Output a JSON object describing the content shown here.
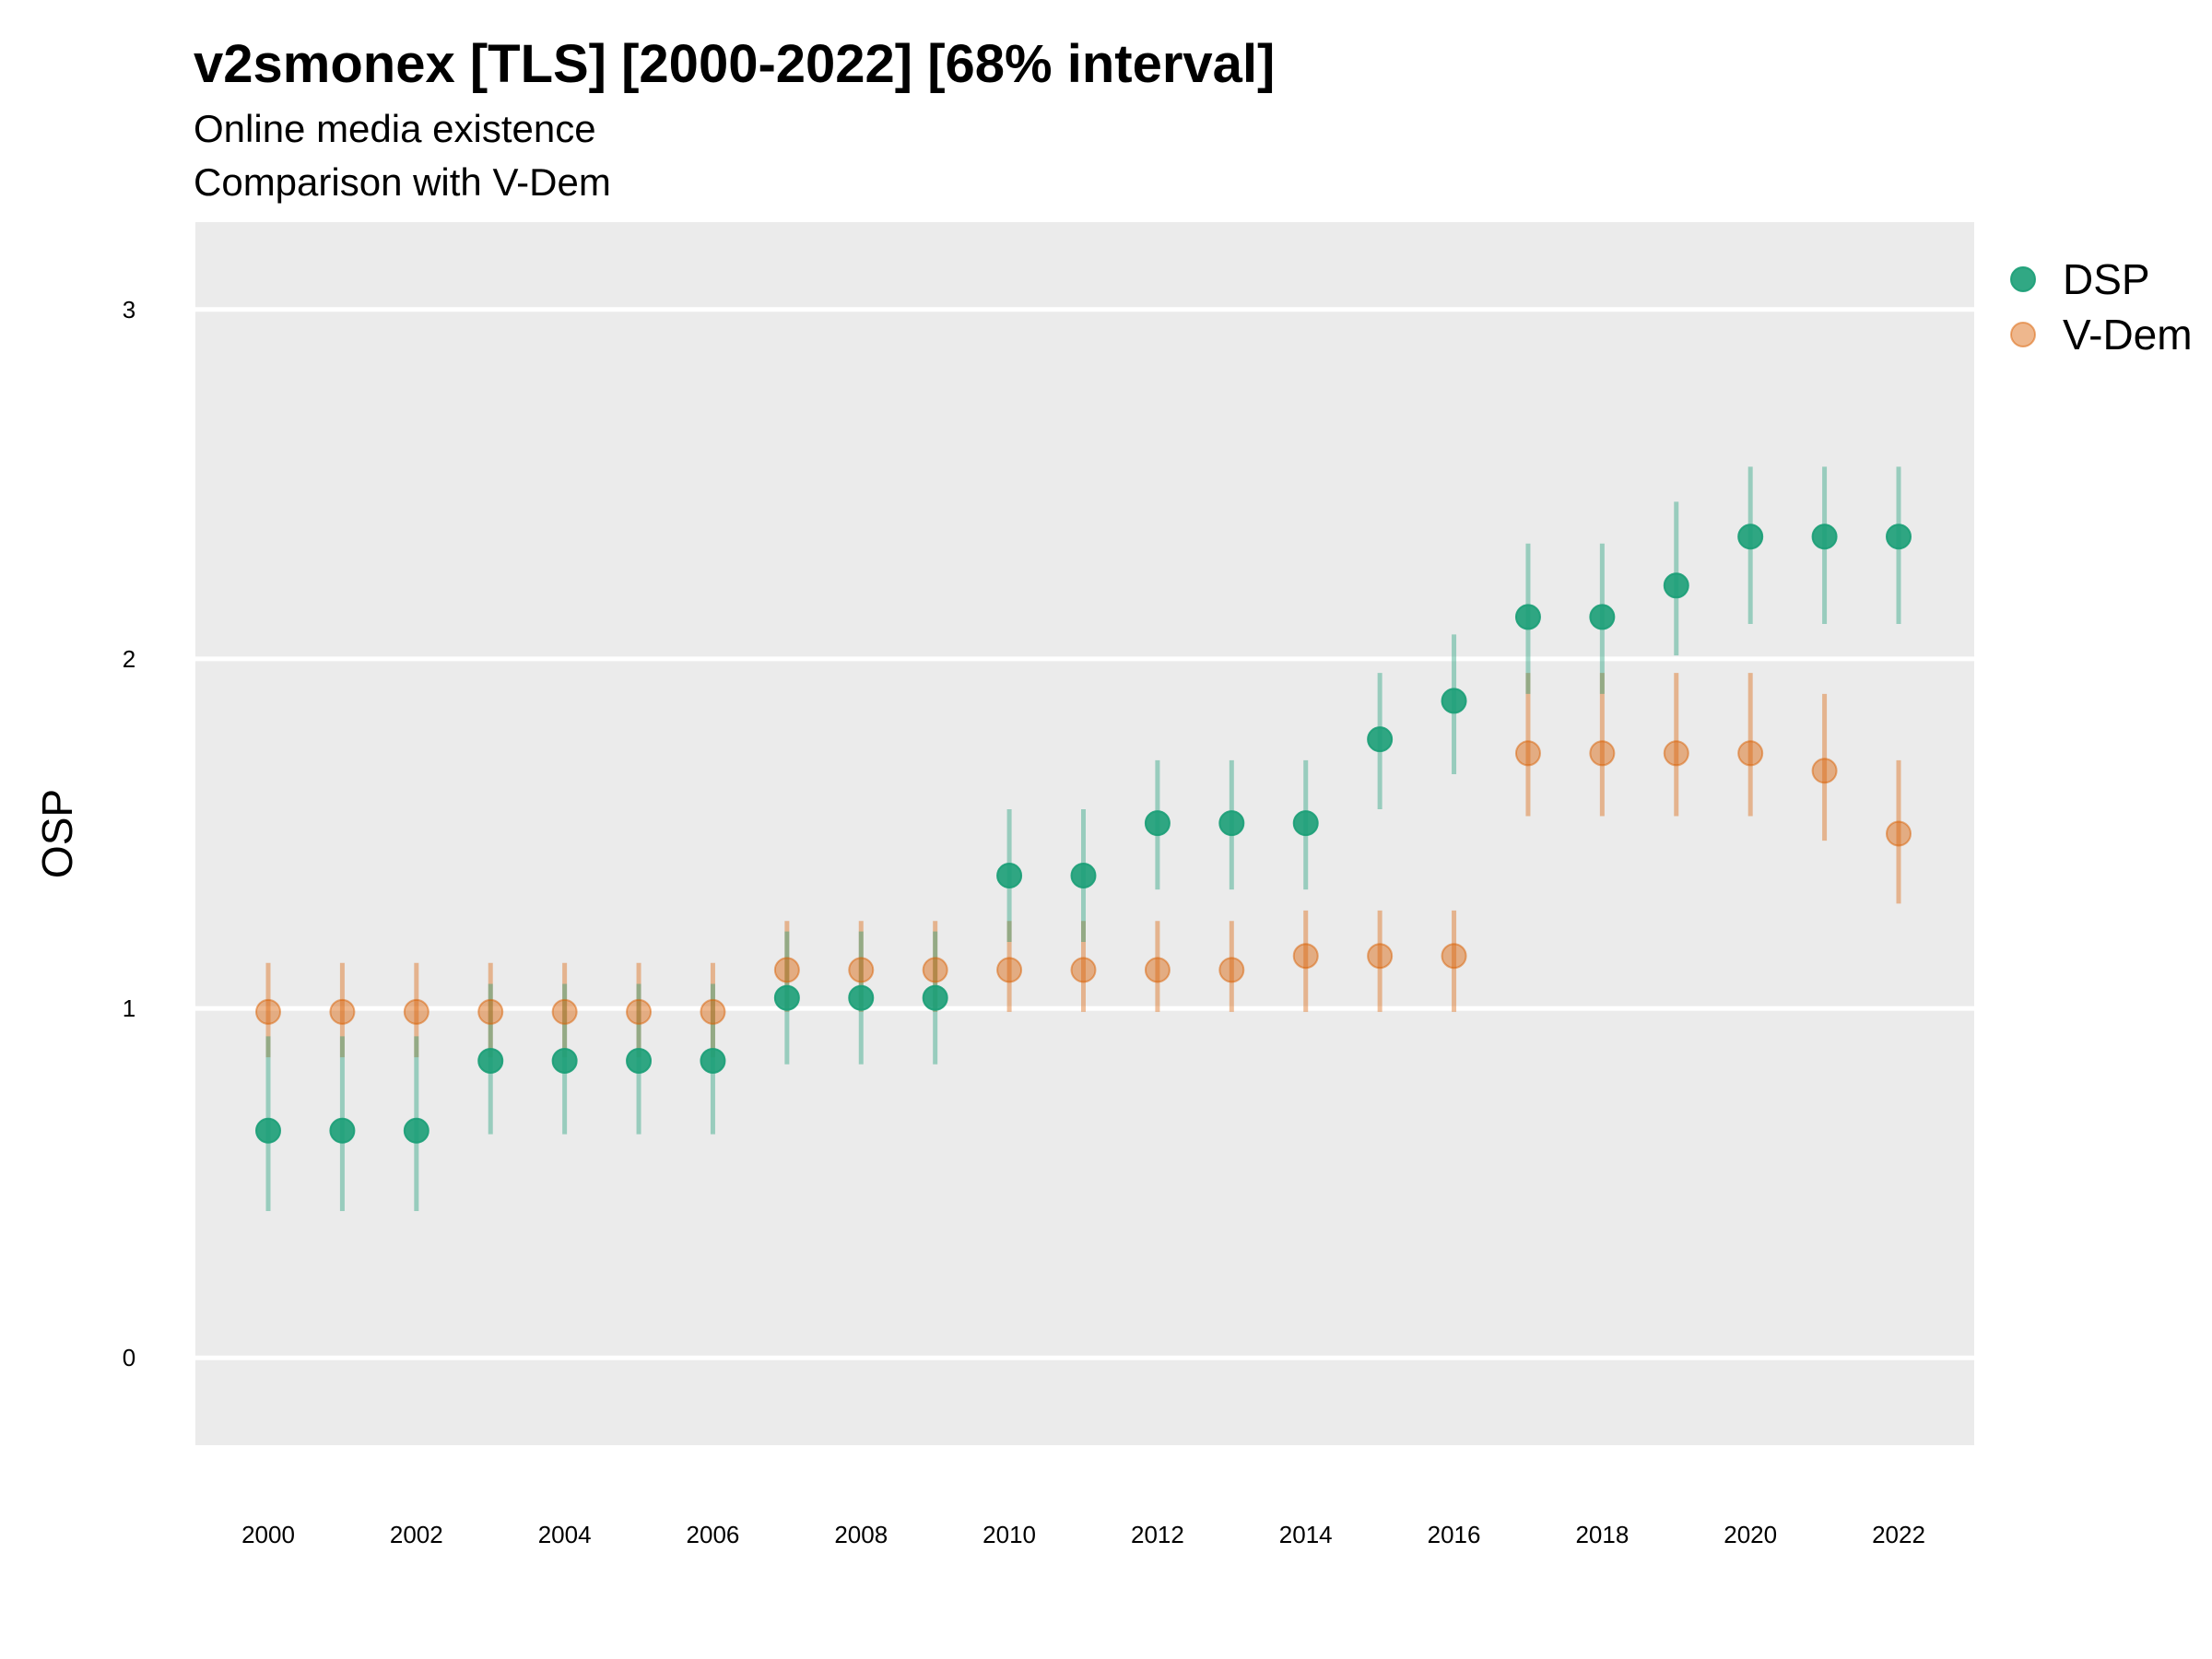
{
  "chart_data": {
    "type": "scatter",
    "title": "v2smonex [TLS] [2000-2022] [68% interval]",
    "subtitle_lines": [
      "Online media existence",
      "Comparison with V-Dem"
    ],
    "ylabel": "OSP",
    "xlabel": "",
    "ylim": [
      -0.25,
      3.25
    ],
    "xlim": [
      1999,
      2023
    ],
    "yticks": [
      0,
      1,
      2,
      3
    ],
    "xticks": [
      2000,
      2002,
      2004,
      2006,
      2008,
      2010,
      2012,
      2014,
      2016,
      2018,
      2020,
      2022
    ],
    "grid": true,
    "legend_position": "right",
    "x": [
      2000,
      2001,
      2002,
      2003,
      2004,
      2005,
      2006,
      2007,
      2008,
      2009,
      2010,
      2011,
      2012,
      2013,
      2014,
      2015,
      2016,
      2017,
      2018,
      2019,
      2020,
      2021,
      2022
    ],
    "series": [
      {
        "name": "DSP",
        "color": "#1b9e77",
        "values": [
          0.65,
          0.65,
          0.65,
          0.85,
          0.85,
          0.85,
          0.85,
          1.03,
          1.03,
          1.03,
          1.38,
          1.38,
          1.53,
          1.53,
          1.53,
          1.77,
          1.88,
          2.12,
          2.12,
          2.21,
          2.35,
          2.35,
          2.35
        ],
        "lower": [
          0.42,
          0.42,
          0.42,
          0.64,
          0.64,
          0.64,
          0.64,
          0.84,
          0.84,
          0.84,
          1.19,
          1.19,
          1.34,
          1.34,
          1.34,
          1.57,
          1.67,
          1.9,
          1.9,
          2.01,
          2.1,
          2.1,
          2.1
        ],
        "upper": [
          0.92,
          0.92,
          0.92,
          1.07,
          1.07,
          1.07,
          1.07,
          1.22,
          1.22,
          1.22,
          1.57,
          1.57,
          1.71,
          1.71,
          1.71,
          1.96,
          2.07,
          2.33,
          2.33,
          2.45,
          2.55,
          2.55,
          2.55
        ]
      },
      {
        "name": "V-Dem",
        "color": "#d95f02",
        "values": [
          0.99,
          0.99,
          0.99,
          0.99,
          0.99,
          0.99,
          0.99,
          1.11,
          1.11,
          1.11,
          1.11,
          1.11,
          1.11,
          1.11,
          1.15,
          1.15,
          1.15,
          1.73,
          1.73,
          1.73,
          1.73,
          1.68,
          1.5
        ],
        "lower": [
          0.86,
          0.86,
          0.86,
          0.86,
          0.86,
          0.86,
          0.86,
          0.99,
          0.99,
          0.99,
          0.99,
          0.99,
          0.99,
          0.99,
          0.99,
          0.99,
          0.99,
          1.55,
          1.55,
          1.55,
          1.55,
          1.48,
          1.3
        ],
        "upper": [
          1.13,
          1.13,
          1.13,
          1.13,
          1.13,
          1.13,
          1.13,
          1.25,
          1.25,
          1.25,
          1.25,
          1.25,
          1.25,
          1.25,
          1.28,
          1.28,
          1.28,
          1.96,
          1.96,
          1.96,
          1.96,
          1.9,
          1.71
        ]
      }
    ]
  }
}
